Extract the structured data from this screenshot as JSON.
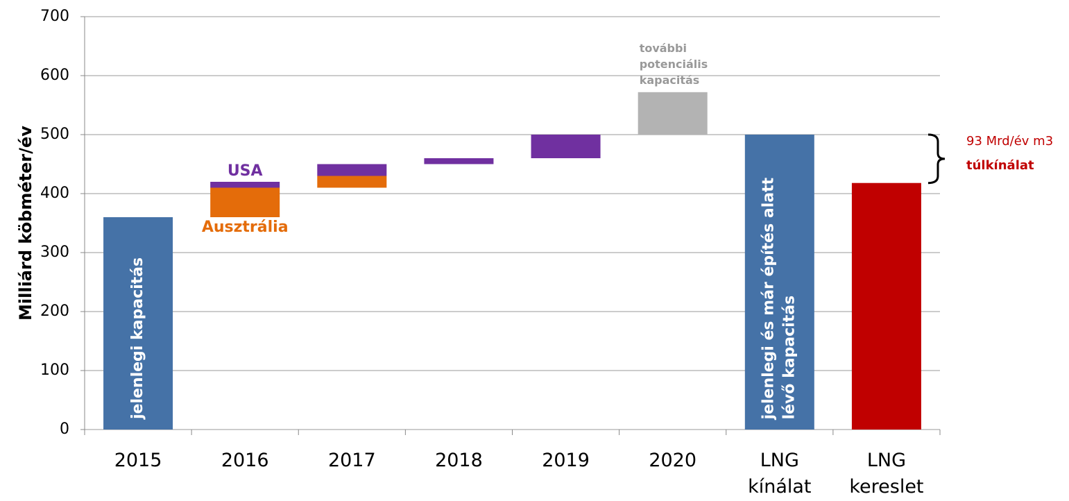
{
  "chart_data": {
    "type": "waterfall",
    "ylabel": "Milliárd köbméter/év",
    "categories": [
      "2015",
      "2016",
      "2017",
      "2018",
      "2019",
      "2020",
      "LNG kínálat",
      "LNG kereslet"
    ],
    "ylim": [
      0,
      700
    ],
    "yticks": [
      0,
      100,
      200,
      300,
      400,
      500,
      600,
      700
    ],
    "grid": true,
    "series": [
      {
        "color": "#4572a7",
        "label_position": "inside",
        "values": [
          [
            0,
            360
          ],
          null,
          null,
          null,
          null,
          null,
          [
            0,
            500
          ],
          null
        ],
        "labels": [
          "jelenlegi kapacitás",
          null,
          null,
          null,
          null,
          null,
          "jelenlegi és már építés alatt lévő kapacitás",
          null
        ]
      },
      {
        "color": "#e46c0a",
        "label_position": "below",
        "values": [
          null,
          [
            360,
            410
          ],
          [
            410,
            430
          ],
          null,
          null,
          null,
          null,
          null
        ],
        "labels": [
          null,
          "Ausztrália",
          null,
          null,
          null,
          null,
          null,
          null
        ]
      },
      {
        "color": "#7030a0",
        "label_position": "above",
        "values": [
          null,
          [
            410,
            420
          ],
          [
            430,
            450
          ],
          [
            450,
            460
          ],
          [
            460,
            500
          ],
          null,
          null,
          null
        ],
        "labels": [
          null,
          "USA",
          null,
          null,
          null,
          null,
          null,
          null
        ]
      },
      {
        "color": "#b3b3b3",
        "label_position": "above",
        "values": [
          null,
          null,
          null,
          null,
          null,
          [
            500,
            572
          ],
          null,
          null
        ],
        "labels": [
          null,
          null,
          null,
          null,
          null,
          "további potenciális kapacitás",
          null,
          null
        ]
      },
      {
        "color": "#c00000",
        "label_position": "inside",
        "values": [
          null,
          null,
          null,
          null,
          null,
          null,
          null,
          [
            0,
            418
          ]
        ],
        "labels": [
          null,
          null,
          null,
          null,
          null,
          null,
          null,
          null
        ]
      }
    ],
    "annotations": [
      "93 Mrd/év m3",
      "túlkínálat"
    ]
  }
}
